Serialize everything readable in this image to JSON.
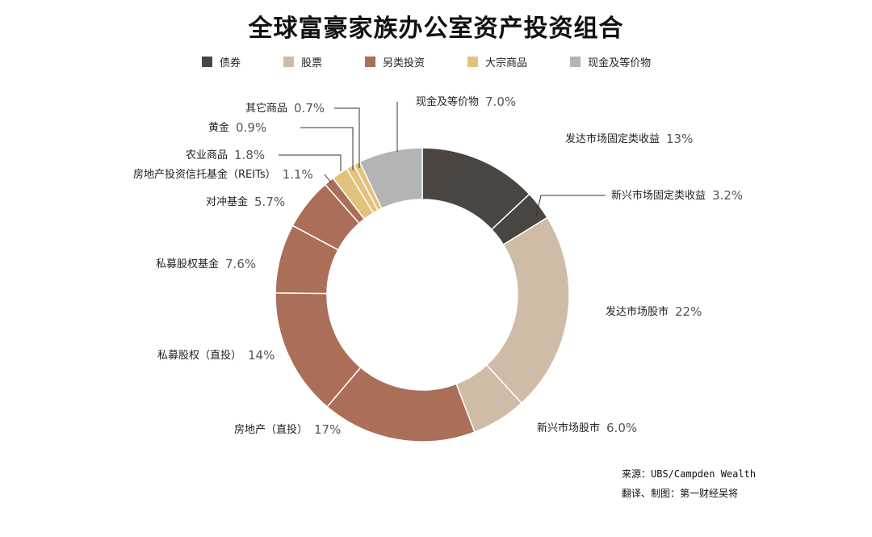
{
  "title": "全球富豪家族办公室资产投资组合",
  "legend": [
    {
      "label": "债券",
      "color": "#4a4541"
    },
    {
      "label": "股票",
      "color": "#cfbca7"
    },
    {
      "label": "另类投资",
      "color": "#aa6e59"
    },
    {
      "label": "大宗商品",
      "color": "#e2c27c"
    },
    {
      "label": "现金及等价物",
      "color": "#b3b4b6"
    }
  ],
  "chart_data": {
    "type": "donut",
    "title": "全球富豪家族办公室资产投资组合",
    "slices": [
      {
        "label": "发达市场固定类收益",
        "value": 13,
        "display": "13%",
        "category": "债券",
        "color": "#4a4541"
      },
      {
        "label": "新兴市场固定类收益",
        "value": 3.2,
        "display": "3.2%",
        "category": "债券",
        "color": "#4a4541"
      },
      {
        "label": "发达市场股市",
        "value": 22,
        "display": "22%",
        "category": "股票",
        "color": "#cfbca7"
      },
      {
        "label": "新兴市场股市",
        "value": 6.0,
        "display": "6.0%",
        "category": "股票",
        "color": "#cfbca7"
      },
      {
        "label": "房地产（直投）",
        "value": 17,
        "display": "17%",
        "category": "另类投资",
        "color": "#aa6e59"
      },
      {
        "label": "私募股权（直投）",
        "value": 14,
        "display": "14%",
        "category": "另类投资",
        "color": "#aa6e59"
      },
      {
        "label": "私募股权基金",
        "value": 7.6,
        "display": "7.6%",
        "category": "另类投资",
        "color": "#aa6e59"
      },
      {
        "label": "对冲基金",
        "value": 5.7,
        "display": "5.7%",
        "category": "另类投资",
        "color": "#aa6e59"
      },
      {
        "label": "房地产投资信托基金（REITs）",
        "value": 1.1,
        "display": "1.1%",
        "category": "另类投资",
        "color": "#aa6e59"
      },
      {
        "label": "农业商品",
        "value": 1.8,
        "display": "1.8%",
        "category": "大宗商品",
        "color": "#e2c27c"
      },
      {
        "label": "黄金",
        "value": 0.9,
        "display": "0.9%",
        "category": "大宗商品",
        "color": "#e2c27c"
      },
      {
        "label": "其它商品",
        "value": 0.7,
        "display": "0.7%",
        "category": "大宗商品",
        "color": "#e2c27c"
      },
      {
        "label": "现金及等价物",
        "value": 7.0,
        "display": "7.0%",
        "category": "现金及等价物",
        "color": "#b3b4b6"
      }
    ],
    "legend_position": "top"
  },
  "source": {
    "line1": "来源：UBS/Campden Wealth",
    "line2": "翻译、制图：第一财经吴将"
  }
}
